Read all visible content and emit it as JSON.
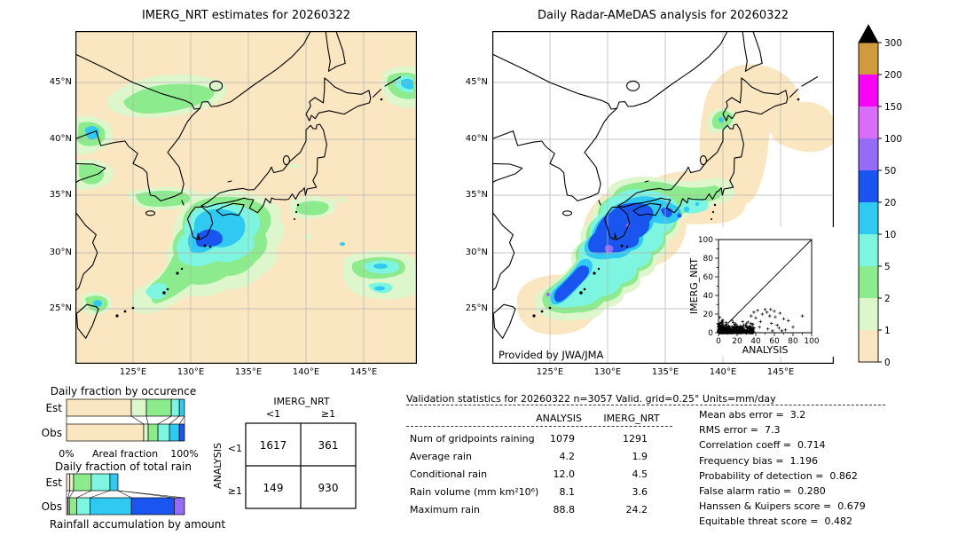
{
  "maps": {
    "left_title": "IMERG_NRT estimates for 20260322",
    "right_title": "Daily Radar-AMeDAS analysis for 20260322",
    "credit": "Provided by JWA/JMA",
    "lat_ticks": [
      "45°N",
      "40°N",
      "35°N",
      "30°N",
      "25°N"
    ],
    "lon_ticks": [
      "125°E",
      "130°E",
      "135°E",
      "140°E",
      "145°E"
    ]
  },
  "colorbar": {
    "tick_labels": [
      "0",
      "1",
      "2",
      "5",
      "10",
      "20",
      "50",
      "100",
      "150",
      "200",
      "300"
    ],
    "bin_colors": [
      "#fae6c0",
      "#ddf6cc",
      "#8ceb8c",
      "#7df5e0",
      "#2fc9f2",
      "#1a55f0",
      "#956bf7",
      "#d96df7",
      "#f704f7",
      "#cf9b3d"
    ],
    "over_color": "#000000"
  },
  "chart_data": [
    {
      "id": "daily_fraction_by_occurrence",
      "type": "bar",
      "stacked": true,
      "orientation": "horizontal",
      "title": "Daily fraction by occurence",
      "categories": [
        "Est",
        "Obs"
      ],
      "xlabel": "Areal fraction",
      "x_left_label": "0%",
      "x_right_label": "100%",
      "bins_mm": [
        "0-1",
        "1-2",
        "2-5",
        "5-10",
        "10-20",
        "20-50"
      ],
      "series": [
        {
          "name": "Est",
          "values": [
            54.9,
            12.8,
            21.1,
            6.8,
            4.4,
            0
          ]
        },
        {
          "name": "Obs",
          "values": [
            65.4,
            3.8,
            8.3,
            9.8,
            8.3,
            4.4
          ]
        }
      ]
    },
    {
      "id": "daily_fraction_of_total_rain",
      "type": "bar",
      "stacked": true,
      "orientation": "horizontal",
      "title": "Daily fraction of total rain",
      "caption": "Rainfall accumulation by amount",
      "categories": [
        "Est",
        "Obs"
      ],
      "bins_mm": [
        "0-1",
        "1-2",
        "2-5",
        "5-10",
        "10-20",
        "20-50",
        "50-100"
      ],
      "series": [
        {
          "name": "Est",
          "values": [
            2.8,
            3.2,
            15.0,
            15.8,
            6.8,
            0,
            0
          ]
        },
        {
          "name": "Obs",
          "values": [
            1.2,
            1.2,
            6.2,
            11.3,
            35.1,
            36.3,
            8.7
          ]
        }
      ]
    },
    {
      "id": "contingency_table",
      "type": "table",
      "col_group": "IMERG_NRT",
      "row_group": "ANALYSIS",
      "col_labels": [
        "<1",
        "≥1"
      ],
      "row_labels": [
        "<1",
        "≥1"
      ],
      "values": [
        [
          "1617",
          "361"
        ],
        [
          "149",
          "930"
        ]
      ]
    },
    {
      "id": "validation_stats",
      "type": "table",
      "header": "Validation statistics for 20260322  n=3057 Valid. grid=0.25° Units=mm/day",
      "columns": [
        "ANALYSIS",
        "IMERG_NRT"
      ],
      "rows": [
        [
          "Num of gridpoints raining",
          "1079",
          "1291"
        ],
        [
          "Average rain",
          "4.2",
          "1.9"
        ],
        [
          "Conditional rain",
          "12.0",
          "4.5"
        ],
        [
          "Rain volume (mm km²10⁶)",
          "8.1",
          "3.6"
        ],
        [
          "Maximum rain",
          "88.8",
          "24.2"
        ]
      ]
    },
    {
      "id": "skill_scores",
      "type": "list",
      "items": [
        [
          "Mean abs error",
          "3.2"
        ],
        [
          "RMS error",
          "7.3"
        ],
        [
          "Correlation coeff",
          "0.714"
        ],
        [
          "Frequency bias",
          "1.196"
        ],
        [
          "Probability of detection",
          "0.862"
        ],
        [
          "False alarm ratio",
          "0.280"
        ],
        [
          "Hanssen & Kuipers score",
          "0.679"
        ],
        [
          "Equitable threat score",
          "0.482"
        ]
      ]
    },
    {
      "id": "inset_scatter",
      "type": "scatter",
      "xlabel": "ANALYSIS",
      "ylabel": "IMERG_NRT",
      "xlim": [
        0,
        100
      ],
      "ylim": [
        0,
        100
      ],
      "tick_step": 20,
      "marker": "+",
      "one_to_one_line": true,
      "cluster": {
        "count": 430,
        "x_max": 38,
        "y_max": 14,
        "seed": 7
      },
      "outliers": [
        [
          35,
          18
        ],
        [
          38,
          22
        ],
        [
          40,
          16
        ],
        [
          42,
          24
        ],
        [
          44,
          6
        ],
        [
          45,
          12
        ],
        [
          47,
          20
        ],
        [
          50,
          25
        ],
        [
          52,
          22
        ],
        [
          53,
          4
        ],
        [
          55,
          18
        ],
        [
          56,
          25
        ],
        [
          57,
          10
        ],
        [
          58,
          2
        ],
        [
          60,
          23
        ],
        [
          61,
          17
        ],
        [
          63,
          8
        ],
        [
          65,
          5
        ],
        [
          66,
          21
        ],
        [
          68,
          2
        ],
        [
          70,
          15
        ],
        [
          72,
          3
        ],
        [
          75,
          13
        ],
        [
          80,
          6
        ],
        [
          90,
          18
        ]
      ]
    }
  ]
}
